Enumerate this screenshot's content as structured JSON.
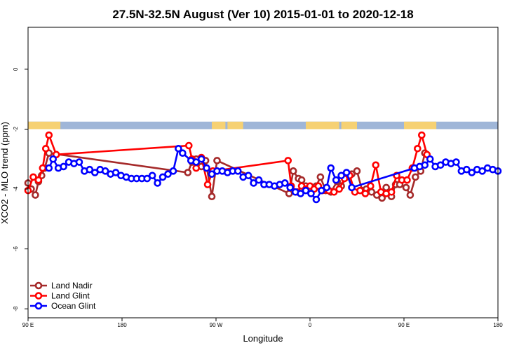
{
  "chart_data": {
    "type": "line",
    "title": "27.5N-32.5N August (Ver 10)   2015-01-01 to 2020-12-18",
    "xlabel": "Longitude",
    "ylabel": "XCO2 - MLO trend (ppm)",
    "xlim": [
      90,
      540
    ],
    "ylim": [
      -8.3,
      1.4
    ],
    "x_ticks": [
      {
        "value": 90,
        "label": "90 E"
      },
      {
        "value": 180,
        "label": "180"
      },
      {
        "value": 270,
        "label": "90 W"
      },
      {
        "value": 360,
        "label": "0"
      },
      {
        "value": 450,
        "label": "90 E"
      },
      {
        "value": 540,
        "label": "180"
      }
    ],
    "y_ticks": [
      {
        "value": 0,
        "label": "0"
      },
      {
        "value": -2,
        "label": "-2"
      },
      {
        "value": -4,
        "label": "-4"
      },
      {
        "value": -6,
        "label": "-6"
      },
      {
        "value": -8,
        "label": "-8"
      }
    ],
    "surface_strip": {
      "y_top": -1.75,
      "y_bottom": -2.0,
      "ocean_color": "#9fb6d8",
      "land_color": "#f6d173",
      "land_segments": [
        [
          90,
          121
        ],
        [
          266,
          279
        ],
        [
          281,
          296
        ],
        [
          356,
          388
        ],
        [
          390,
          405
        ],
        [
          450,
          481
        ]
      ]
    },
    "legend_position": "bottom-left",
    "series": [
      {
        "name": "Land Nadir",
        "color": "#a52a2a",
        "points": [
          [
            90,
            -3.8
          ],
          [
            93,
            -4.0
          ],
          [
            97,
            -4.2
          ],
          [
            100,
            -3.75
          ],
          [
            103,
            -3.55
          ],
          [
            106,
            -3.3
          ],
          [
            110,
            -2.8
          ],
          [
            243,
            -3.45
          ],
          [
            247,
            -3.1
          ],
          [
            251,
            -3.0
          ],
          [
            256,
            -3.25
          ],
          [
            260,
            -3.05
          ],
          [
            266,
            -4.25
          ],
          [
            271,
            -3.05
          ],
          [
            340,
            -4.15
          ],
          [
            344,
            -3.4
          ],
          [
            349,
            -3.65
          ],
          [
            352,
            -3.7
          ],
          [
            356,
            -3.9
          ],
          [
            359,
            -4.0
          ],
          [
            366,
            -3.9
          ],
          [
            370,
            -3.6
          ],
          [
            375,
            -4.05
          ],
          [
            380,
            -4.1
          ],
          [
            386,
            -3.75
          ],
          [
            390,
            -3.9
          ],
          [
            395,
            -3.6
          ],
          [
            400,
            -3.5
          ],
          [
            405,
            -3.4
          ],
          [
            410,
            -4.05
          ],
          [
            414,
            -4.0
          ],
          [
            419,
            -4.1
          ],
          [
            424,
            -4.2
          ],
          [
            429,
            -4.3
          ],
          [
            433,
            -3.95
          ],
          [
            438,
            -4.25
          ],
          [
            442,
            -3.85
          ],
          [
            446,
            -3.85
          ],
          [
            452,
            -3.95
          ],
          [
            456,
            -4.2
          ],
          [
            461,
            -3.6
          ],
          [
            466,
            -3.4
          ],
          [
            470,
            -2.8
          ]
        ]
      },
      {
        "name": "Land Glint",
        "color": "#ff0000",
        "points": [
          [
            90,
            -4.05
          ],
          [
            95,
            -3.6
          ],
          [
            100,
            -3.7
          ],
          [
            104,
            -3.3
          ],
          [
            107,
            -2.65
          ],
          [
            110,
            -2.2
          ],
          [
            117,
            -2.85
          ],
          [
            244,
            -2.55
          ],
          [
            247,
            -3.0
          ],
          [
            251,
            -3.3
          ],
          [
            256,
            -2.95
          ],
          [
            262,
            -3.85
          ],
          [
            267,
            -3.4
          ],
          [
            339,
            -3.05
          ],
          [
            342,
            -3.9
          ],
          [
            348,
            -4.1
          ],
          [
            352,
            -3.9
          ],
          [
            356,
            -4.0
          ],
          [
            360,
            -3.9
          ],
          [
            364,
            -4.0
          ],
          [
            368,
            -3.9
          ],
          [
            372,
            -4.05
          ],
          [
            378,
            -4.05
          ],
          [
            383,
            -4.1
          ],
          [
            388,
            -4.0
          ],
          [
            393,
            -3.65
          ],
          [
            398,
            -3.55
          ],
          [
            403,
            -4.1
          ],
          [
            408,
            -4.05
          ],
          [
            413,
            -4.15
          ],
          [
            418,
            -3.9
          ],
          [
            423,
            -3.2
          ],
          [
            428,
            -4.1
          ],
          [
            433,
            -4.15
          ],
          [
            438,
            -4.1
          ],
          [
            443,
            -3.55
          ],
          [
            448,
            -3.7
          ],
          [
            453,
            -3.7
          ],
          [
            458,
            -3.3
          ],
          [
            463,
            -2.65
          ],
          [
            467,
            -2.2
          ],
          [
            472,
            -2.85
          ]
        ]
      },
      {
        "name": "Ocean Glint",
        "color": "#0000ff",
        "points": [
          [
            110,
            -3.3
          ],
          [
            114,
            -3.0
          ],
          [
            119,
            -3.3
          ],
          [
            124,
            -3.25
          ],
          [
            129,
            -3.1
          ],
          [
            134,
            -3.15
          ],
          [
            139,
            -3.1
          ],
          [
            144,
            -3.4
          ],
          [
            149,
            -3.35
          ],
          [
            154,
            -3.45
          ],
          [
            159,
            -3.35
          ],
          [
            164,
            -3.4
          ],
          [
            169,
            -3.5
          ],
          [
            174,
            -3.45
          ],
          [
            179,
            -3.55
          ],
          [
            184,
            -3.6
          ],
          [
            189,
            -3.65
          ],
          [
            194,
            -3.65
          ],
          [
            199,
            -3.65
          ],
          [
            204,
            -3.65
          ],
          [
            209,
            -3.55
          ],
          [
            214,
            -3.8
          ],
          [
            219,
            -3.6
          ],
          [
            224,
            -3.5
          ],
          [
            229,
            -3.4
          ],
          [
            234,
            -2.65
          ],
          [
            238,
            -2.8
          ],
          [
            246,
            -3.05
          ],
          [
            251,
            -3.1
          ],
          [
            256,
            -3.0
          ],
          [
            261,
            -3.3
          ],
          [
            266,
            -3.5
          ],
          [
            271,
            -3.4
          ],
          [
            276,
            -3.4
          ],
          [
            281,
            -3.45
          ],
          [
            286,
            -3.4
          ],
          [
            291,
            -3.4
          ],
          [
            296,
            -3.6
          ],
          [
            301,
            -3.55
          ],
          [
            306,
            -3.8
          ],
          [
            311,
            -3.7
          ],
          [
            316,
            -3.85
          ],
          [
            321,
            -3.85
          ],
          [
            326,
            -3.9
          ],
          [
            331,
            -3.85
          ],
          [
            336,
            -3.8
          ],
          [
            341,
            -3.95
          ],
          [
            346,
            -4.1
          ],
          [
            351,
            -4.15
          ],
          [
            356,
            -4.05
          ],
          [
            361,
            -4.15
          ],
          [
            366,
            -4.35
          ],
          [
            371,
            -4.05
          ],
          [
            376,
            -3.95
          ],
          [
            380,
            -3.3
          ],
          [
            385,
            -3.7
          ],
          [
            390,
            -3.55
          ],
          [
            395,
            -3.45
          ],
          [
            400,
            -3.95
          ],
          [
            460,
            -3.3
          ],
          [
            465,
            -3.25
          ],
          [
            470,
            -3.2
          ],
          [
            475,
            -3.0
          ],
          [
            480,
            -3.25
          ],
          [
            485,
            -3.2
          ],
          [
            490,
            -3.1
          ],
          [
            495,
            -3.15
          ],
          [
            500,
            -3.1
          ],
          [
            505,
            -3.4
          ],
          [
            510,
            -3.35
          ],
          [
            515,
            -3.45
          ],
          [
            520,
            -3.35
          ],
          [
            525,
            -3.4
          ],
          [
            530,
            -3.3
          ],
          [
            535,
            -3.35
          ],
          [
            540,
            -3.4
          ]
        ]
      }
    ]
  }
}
